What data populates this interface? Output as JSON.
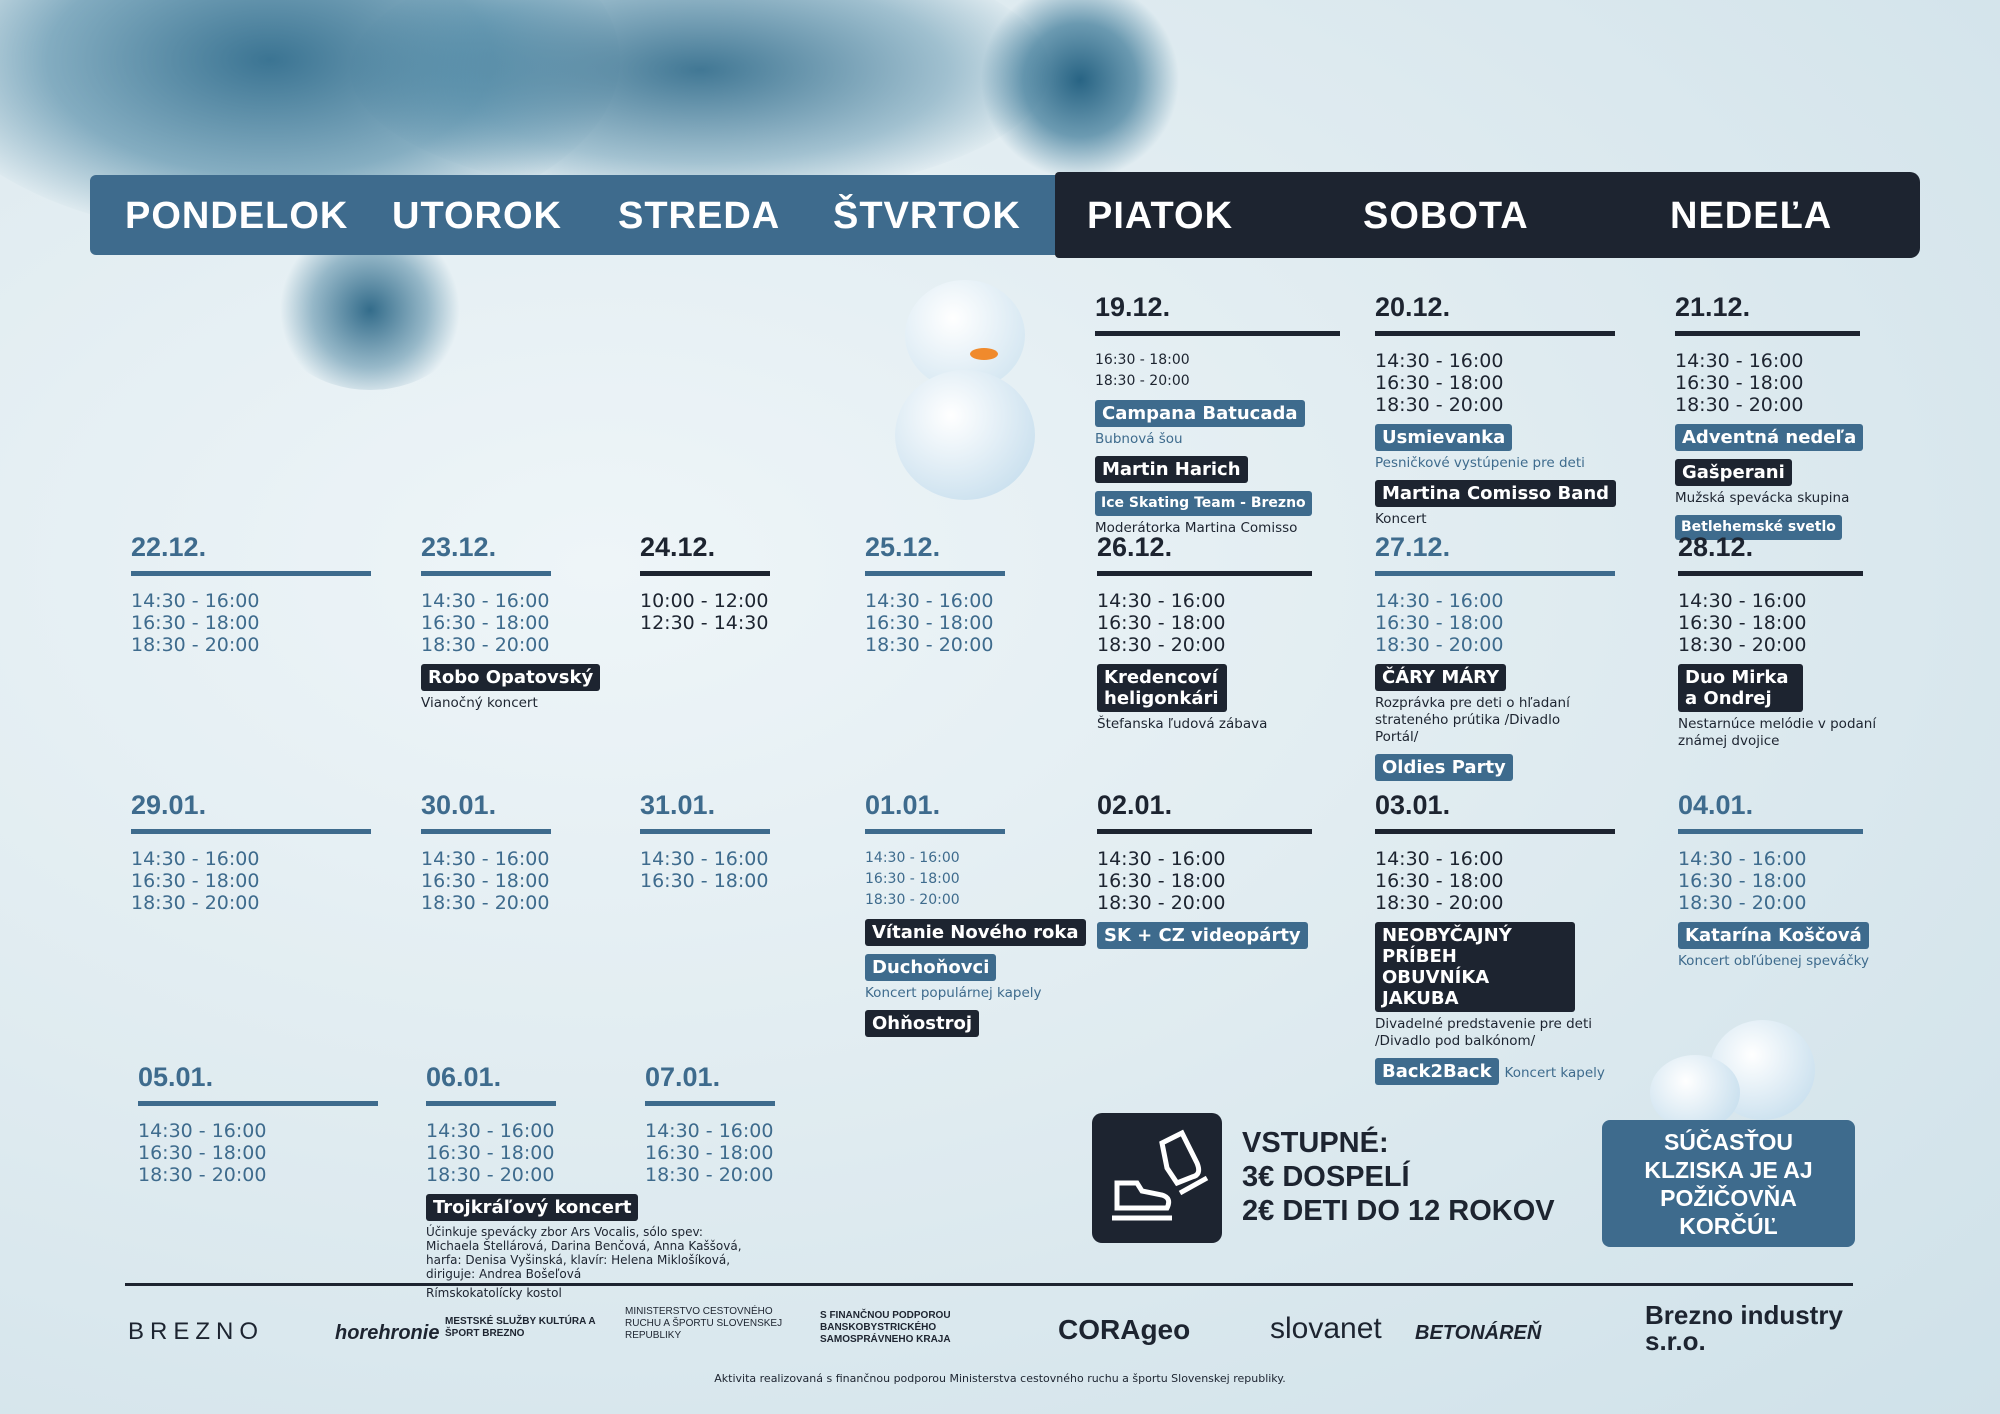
{
  "colors": {
    "blue": "#3e6b8d",
    "dark": "#1d2430"
  },
  "days": [
    "PONDELOK",
    "UTOROK",
    "STREDA",
    "ŠTVRTOK",
    "PIATOK",
    "SOBOTA",
    "NEDEĽA"
  ],
  "dates": [
    {
      "date": "19.12.",
      "tone": "dark",
      "small": true,
      "times": [
        "16:30 - 18:00",
        "18:30 - 20:00"
      ],
      "events": [
        {
          "label": "Campana Batucada",
          "style": "blue",
          "desc": "Bubnová šou"
        },
        {
          "label": "Martin Harich",
          "style": "dark"
        },
        {
          "label": "Ice Skating Team - Brezno",
          "style": "blue",
          "size": "small",
          "desc": "Moderátorka Martina Comisso",
          "desc_tone": "dark"
        }
      ]
    },
    {
      "date": "20.12.",
      "tone": "dark",
      "times": [
        "14:30 - 16:00",
        "16:30 - 18:00",
        "18:30 - 20:00"
      ],
      "events": [
        {
          "label": "Usmievanka",
          "style": "blue",
          "desc": "Pesničkové vystúpenie pre deti"
        },
        {
          "label": "Martina Comisso Band",
          "style": "dark",
          "desc": "Koncert"
        }
      ]
    },
    {
      "date": "21.12.",
      "tone": "dark",
      "times": [
        "14:30 - 16:00",
        "16:30 - 18:00",
        "18:30 - 20:00"
      ],
      "events": [
        {
          "label": "Adventná nedeľa",
          "style": "blue"
        },
        {
          "label": "Gašperani",
          "style": "dark",
          "desc": "Mužská spevácka skupina"
        },
        {
          "label": "Betlehemské svetlo",
          "style": "blue",
          "size": "small"
        }
      ]
    },
    {
      "date": "22.12.",
      "tone": "blue",
      "times": [
        "14:30 - 16:00",
        "16:30 - 18:00",
        "18:30 - 20:00"
      ],
      "events": []
    },
    {
      "date": "23.12.",
      "tone": "blue",
      "times": [
        "14:30 - 16:00",
        "16:30 - 18:00",
        "18:30 - 20:00"
      ],
      "events": [
        {
          "label": "Robo Opatovský",
          "style": "dark",
          "desc": "Vianočný koncert"
        }
      ]
    },
    {
      "date": "24.12.",
      "tone": "dark",
      "times": [
        "10:00 - 12:00",
        "12:30 - 14:30"
      ],
      "events": []
    },
    {
      "date": "25.12.",
      "tone": "blue",
      "times": [
        "14:30 - 16:00",
        "16:30 - 18:00",
        "18:30 - 20:00"
      ],
      "events": []
    },
    {
      "date": "26.12.",
      "tone": "dark",
      "times": [
        "14:30 - 16:00",
        "16:30 - 18:00",
        "18:30 - 20:00"
      ],
      "events": [
        {
          "label": "Kredencoví heligonkári",
          "style": "dark",
          "desc": "Štefanska ľudová zábava"
        }
      ]
    },
    {
      "date": "27.12.",
      "tone": "blue",
      "times": [
        "14:30 - 16:00",
        "16:30 - 18:00",
        "18:30 - 20:00"
      ],
      "events": [
        {
          "label": "ČÁRY MÁRY",
          "style": "dark",
          "desc": "Rozprávka pre deti o hľadaní strateného prútika /Divadlo Portál/"
        },
        {
          "label": "Oldies Party",
          "style": "blue"
        }
      ]
    },
    {
      "date": "28.12.",
      "tone": "dark",
      "times": [
        "14:30 - 16:00",
        "16:30 - 18:00",
        "18:30 - 20:00"
      ],
      "events": [
        {
          "label": "Duo Mirka a Ondrej",
          "style": "dark",
          "desc": "Nestarnúce melódie v podaní známej dvojice"
        }
      ]
    },
    {
      "date": "29.01.",
      "tone": "blue",
      "times": [
        "14:30 - 16:00",
        "16:30 - 18:00",
        "18:30 - 20:00"
      ],
      "events": []
    },
    {
      "date": "30.01.",
      "tone": "blue",
      "times": [
        "14:30 - 16:00",
        "16:30 - 18:00",
        "18:30 - 20:00"
      ],
      "events": []
    },
    {
      "date": "31.01.",
      "tone": "blue",
      "times": [
        "14:30 - 16:00",
        "16:30 - 18:00"
      ],
      "events": []
    },
    {
      "date": "01.01.",
      "tone": "blue",
      "small": true,
      "wrap": true,
      "times": [
        "14:30 - 16:00",
        "16:30 - 18:00",
        "18:30 - 20:00"
      ],
      "events": [
        {
          "label": "Vítanie Nového roka",
          "style": "dark"
        },
        {
          "label": "Duchoňovci",
          "style": "blue",
          "desc": "Koncert populárnej kapely"
        },
        {
          "label": "Ohňostroj",
          "style": "dark"
        }
      ]
    },
    {
      "date": "02.01.",
      "tone": "dark",
      "times": [
        "14:30 - 16:00",
        "16:30 - 18:00",
        "18:30 - 20:00"
      ],
      "events": [
        {
          "label": "SK + CZ videopárty",
          "style": "blue"
        }
      ]
    },
    {
      "date": "03.01.",
      "tone": "dark",
      "times": [
        "14:30 - 16:00",
        "16:30 - 18:00",
        "18:30 - 20:00"
      ],
      "events": [
        {
          "label": "NEOBYČAJNÝ PRÍBEH OBUVNÍKA JAKUBA",
          "style": "dark",
          "desc": "Divadelné predstavenie pre deti /Divadlo pod balkónom/"
        },
        {
          "label": "Back2Back",
          "style": "blue",
          "inline_desc": "Koncert kapely"
        }
      ]
    },
    {
      "date": "04.01.",
      "tone": "blue",
      "times": [
        "14:30 - 16:00",
        "16:30 - 18:00",
        "18:30 - 20:00"
      ],
      "events": [
        {
          "label": "Katarína Koščová",
          "style": "blue",
          "desc": "Koncert obľúbenej speváčky"
        }
      ]
    },
    {
      "date": "05.01.",
      "tone": "blue",
      "times": [
        "14:30 - 16:00",
        "16:30 - 18:00",
        "18:30 - 20:00"
      ],
      "events": []
    },
    {
      "date": "06.01.",
      "tone": "blue",
      "times": [
        "14:30 - 16:00",
        "16:30 - 18:00",
        "18:30 - 20:00"
      ],
      "events": [
        {
          "label": "Trojkráľový koncert",
          "style": "dark",
          "desc": "Účinkuje spevácky zbor Ars Vocalis, sólo spev: Michaela Štellárová, Darina Benčová, Anna Kaššová, harfa: Denisa Vyšinská, klavír: Helena Miklošíková, diriguje: Andrea Bošeľová",
          "desc2": "Rímskokatolícky kostol"
        }
      ]
    },
    {
      "date": "07.01.",
      "tone": "blue",
      "times": [
        "14:30 - 16:00",
        "16:30 - 18:00",
        "18:30 - 20:00"
      ],
      "events": []
    }
  ],
  "entry": {
    "icon": "ice-skates-icon",
    "title": "VSTUPNÉ:",
    "adult": "3€ DOSPELÍ",
    "kids": "2€ DETI DO 12 ROKOV"
  },
  "rental": {
    "line1": "SÚČASŤOU",
    "line2": "KLZISKA JE AJ",
    "line3": "POŽIČOVŇA",
    "line4": "KORČÚĽ"
  },
  "logos": [
    "BREZNO",
    "horehronie",
    "MESTSKÉ SLUŽBY KULTÚRA A ŠPORT BREZNO",
    "MINISTERSTVO CESTOVNÉHO RUCHU A ŠPORTU SLOVENSKEJ REPUBLIKY",
    "S FINANČNOU PODPOROU BANSKOBYSTRICKÉHO SAMOSPRÁVNEHO KRAJA",
    "CORAgeo",
    "slovanet",
    "BETONÁREŇ",
    "Brezno industry s.r.o."
  ],
  "caption": "Aktivita realizovaná s finančnou podporou Ministerstva cestovného ruchu a športu Slovenskej republiky."
}
